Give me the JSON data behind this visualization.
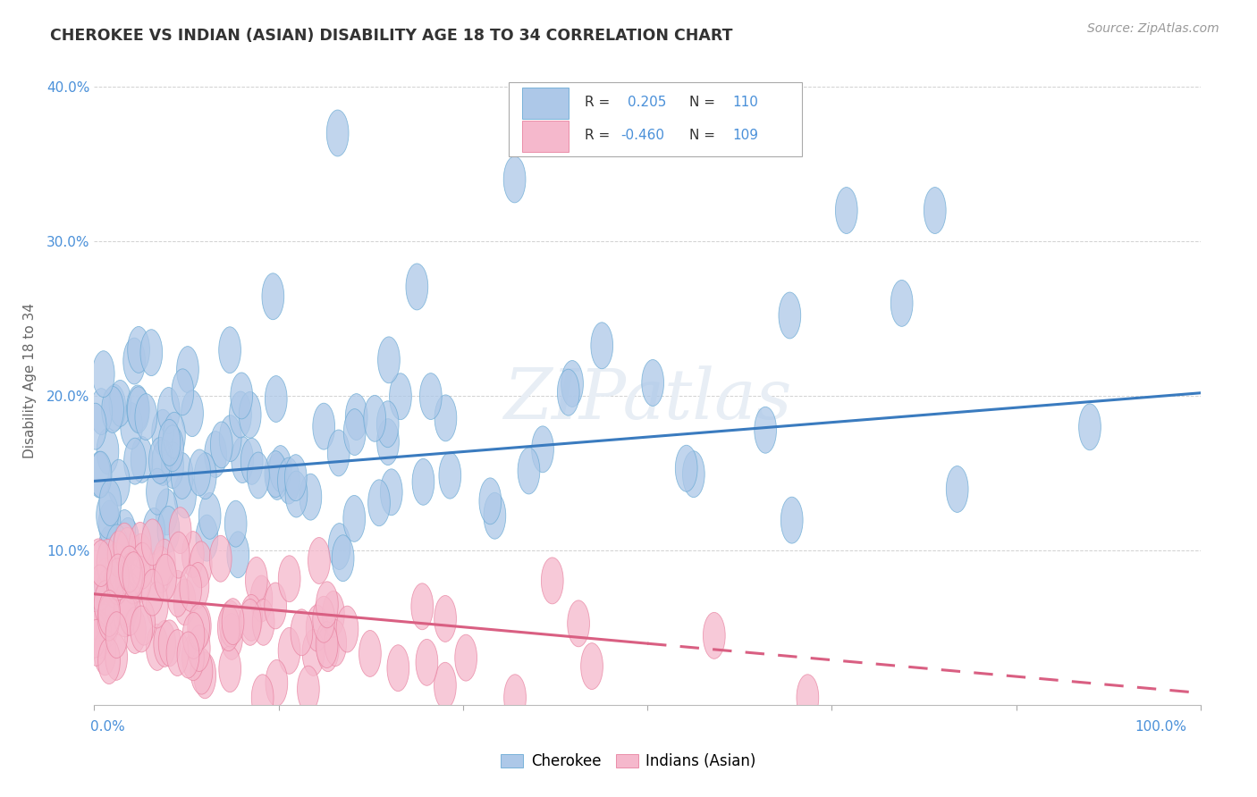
{
  "title": "CHEROKEE VS INDIAN (ASIAN) DISABILITY AGE 18 TO 34 CORRELATION CHART",
  "source": "Source: ZipAtlas.com",
  "ylabel": "Disability Age 18 to 34",
  "cherokee_R": 0.205,
  "cherokee_N": 110,
  "indian_R": -0.46,
  "indian_N": 109,
  "cherokee_color": "#adc8e8",
  "cherokee_edge_color": "#6aaad4",
  "cherokee_line_color": "#3a7bbf",
  "indian_color": "#f5b8cc",
  "indian_edge_color": "#e882a0",
  "indian_line_color": "#d95f82",
  "background_color": "#ffffff",
  "grid_color": "#cccccc",
  "title_color": "#333333",
  "source_color": "#999999",
  "tick_label_color": "#4a90d9",
  "ylabel_color": "#666666",
  "watermark": "ZIPatlas",
  "watermark_color": "#e8eef5",
  "legend_text_color": "#4a90d9",
  "xlim": [
    0,
    100
  ],
  "ylim": [
    0,
    42
  ],
  "yticks": [
    0,
    10,
    20,
    30,
    40
  ],
  "cherokee_line_x0": 0,
  "cherokee_line_y0": 14.5,
  "cherokee_line_x1": 100,
  "cherokee_line_y1": 20.2,
  "indian_line_x0": 0,
  "indian_line_y0": 7.2,
  "indian_line_x1": 100,
  "indian_line_y1": 0.8,
  "indian_solid_end": 50
}
